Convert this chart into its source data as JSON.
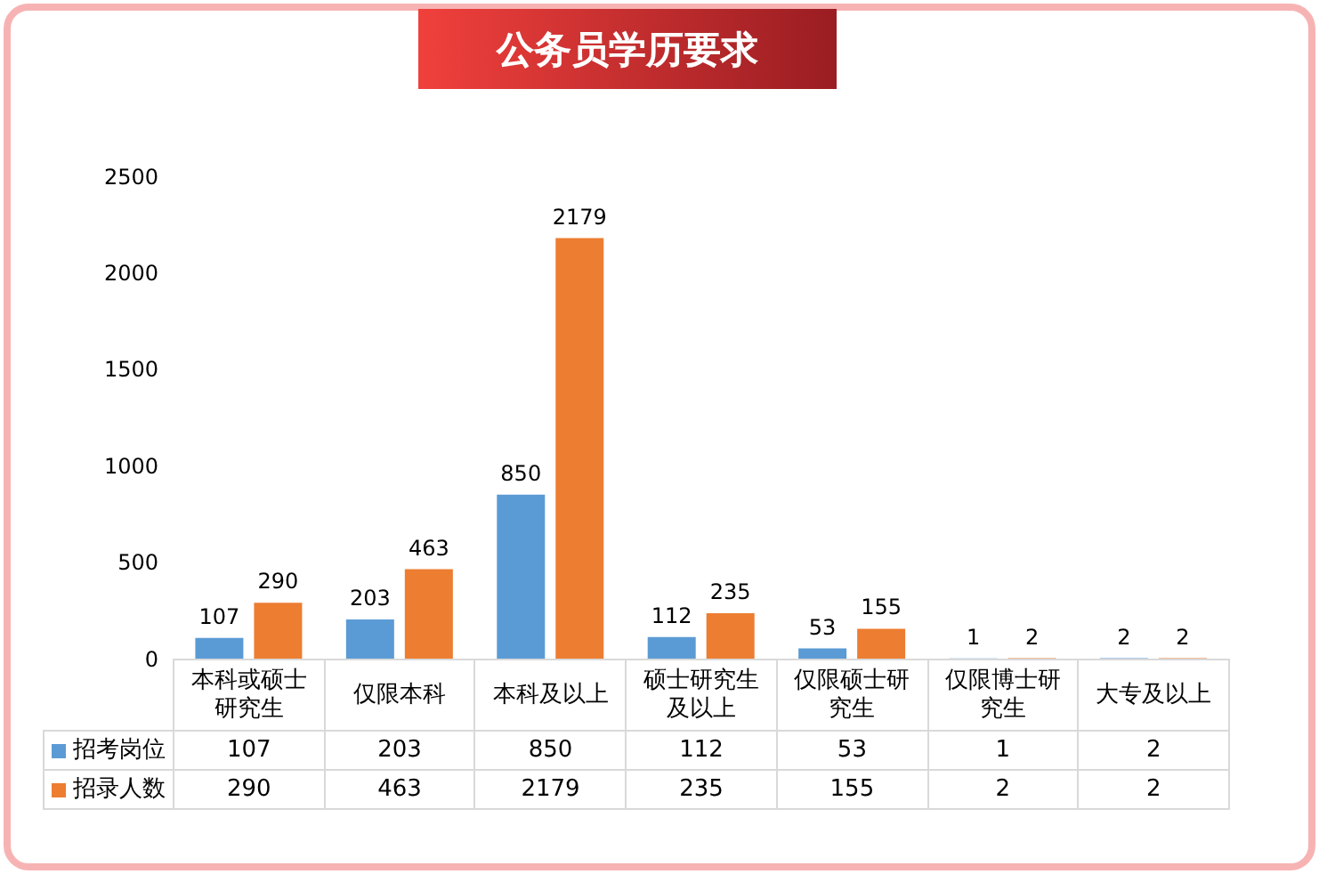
{
  "chart_data": {
    "type": "bar",
    "title": "公务员学历要求",
    "categories": [
      "本科或硕士研究生",
      "仅限本科",
      "本科及以上",
      "硕士研究生及以上",
      "仅限硕士研究生",
      "仅限博士研究生",
      "大专及以上"
    ],
    "series": [
      {
        "name": "招考岗位",
        "color": "#5b9bd5",
        "values": [
          107,
          203,
          850,
          112,
          53,
          1,
          2
        ],
        "value_labels": [
          "107",
          "203",
          "850",
          "112",
          "53",
          "1",
          "2"
        ]
      },
      {
        "name": "招录人数",
        "color": "#ed7d31",
        "values": [
          290,
          463,
          2179,
          235,
          155,
          2,
          2
        ],
        "value_labels": [
          "290",
          "463",
          "2179",
          "235",
          "155",
          "2",
          "2"
        ]
      }
    ],
    "ylim": [
      0,
      2500
    ],
    "yticks": [
      0,
      500,
      1000,
      1500,
      2000,
      2500
    ],
    "grid": false,
    "legend": "bottom",
    "data_labels": true,
    "annotations": [
      "107",
      "203",
      "850",
      "112",
      "53",
      "1",
      "2",
      "290",
      "463",
      "2179",
      "235",
      "155",
      "2",
      "2"
    ]
  }
}
